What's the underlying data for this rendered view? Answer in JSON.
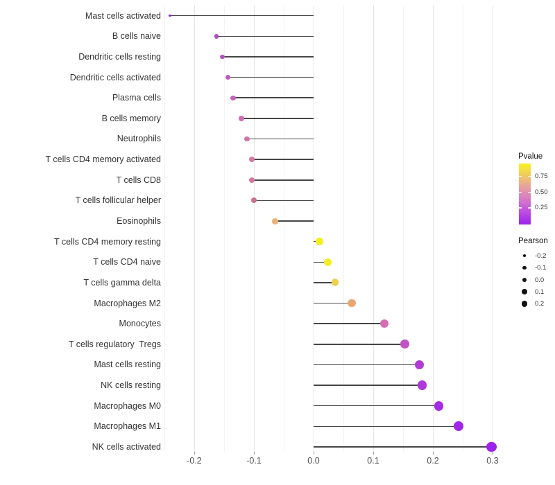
{
  "chart_data": {
    "type": "lollipop",
    "orientation": "horizontal",
    "title": "",
    "xlabel": "",
    "ylabel": "",
    "xlim": [
      -0.27,
      0.33
    ],
    "grid": "vertical major every 0.1, minor every 0.05, no axis lines",
    "x_ticks": [
      -0.2,
      -0.1,
      0.0,
      0.1,
      0.2,
      0.3
    ],
    "x_tick_labels": [
      "-0.2",
      "-0.1",
      "0.0",
      "0.1",
      "0.2",
      "0.3"
    ],
    "minor_grid_values": [
      -0.25,
      -0.15,
      -0.05,
      0.05,
      0.15,
      0.25
    ],
    "stem_color": "#454545",
    "rows": [
      {
        "label": "Mast cells activated",
        "pearson": -0.241,
        "dot_color": "#8e1fd2"
      },
      {
        "label": "B cells naive",
        "pearson": -0.163,
        "dot_color": "#b14cc6"
      },
      {
        "label": "Dendritic cells resting",
        "pearson": -0.153,
        "dot_color": "#b452c4"
      },
      {
        "label": "Dendritic cells activated",
        "pearson": -0.144,
        "dot_color": "#bb5abf"
      },
      {
        "label": "Plasma cells",
        "pearson": -0.135,
        "dot_color": "#c263ba"
      },
      {
        "label": "B cells memory",
        "pearson": -0.121,
        "dot_color": "#ca70ad"
      },
      {
        "label": "Neutrophils",
        "pearson": -0.112,
        "dot_color": "#cd76a7"
      },
      {
        "label": "T cells CD4 memory activated",
        "pearson": -0.104,
        "dot_color": "#d07ba1"
      },
      {
        "label": "T cells CD8",
        "pearson": -0.103,
        "dot_color": "#d07ba1"
      },
      {
        "label": "T cells follicular helper",
        "pearson": -0.1,
        "dot_color": "#cb7095"
      },
      {
        "label": "Eosinophils",
        "pearson": -0.064,
        "dot_color": "#e9b175"
      },
      {
        "label": "T cells CD4 memory resting",
        "pearson": 0.01,
        "dot_color": "#f2ee1f"
      },
      {
        "label": "T cells CD4 naive",
        "pearson": 0.024,
        "dot_color": "#f2ee26"
      },
      {
        "label": "T cells gamma delta",
        "pearson": 0.036,
        "dot_color": "#eed04e"
      },
      {
        "label": "Macrophages M2",
        "pearson": 0.064,
        "dot_color": "#e7a76e"
      },
      {
        "label": "Monocytes",
        "pearson": 0.119,
        "dot_color": "#d46db1"
      },
      {
        "label": "T cells regulatory  Tregs",
        "pearson": 0.153,
        "dot_color": "#c353c5"
      },
      {
        "label": "Mast cells resting",
        "pearson": 0.177,
        "dot_color": "#b13cd4"
      },
      {
        "label": "NK cells resting",
        "pearson": 0.182,
        "dot_color": "#ae38d8"
      },
      {
        "label": "Macrophages M0",
        "pearson": 0.21,
        "dot_color": "#a52ce2"
      },
      {
        "label": "Macrophages M1",
        "pearson": 0.243,
        "dot_color": "#a026e8"
      },
      {
        "label": "NK cells activated",
        "pearson": 0.298,
        "dot_color": "#9d22ec"
      }
    ]
  },
  "legend_pvalue": {
    "title": "Pvalue",
    "ticks": [
      {
        "label": "0.75",
        "pos": 0.211
      },
      {
        "label": "0.50",
        "pos": 0.469
      },
      {
        "label": "0.25",
        "pos": 0.725
      }
    ],
    "gradient_top_to_bottom": [
      "#f9f21e",
      "#eec46c",
      "#e29aa6",
      "#d273cd",
      "#b848e2",
      "#9a23ee"
    ]
  },
  "legend_pearson": {
    "title": "Pearson",
    "items": [
      {
        "label": "-0.2",
        "value": -0.2
      },
      {
        "label": "-0.1",
        "value": -0.1
      },
      {
        "label": "0.0",
        "value": 0.0
      },
      {
        "label": "0.1",
        "value": 0.1
      },
      {
        "label": "0.2",
        "value": 0.2
      }
    ],
    "dot_color": "#111111"
  }
}
